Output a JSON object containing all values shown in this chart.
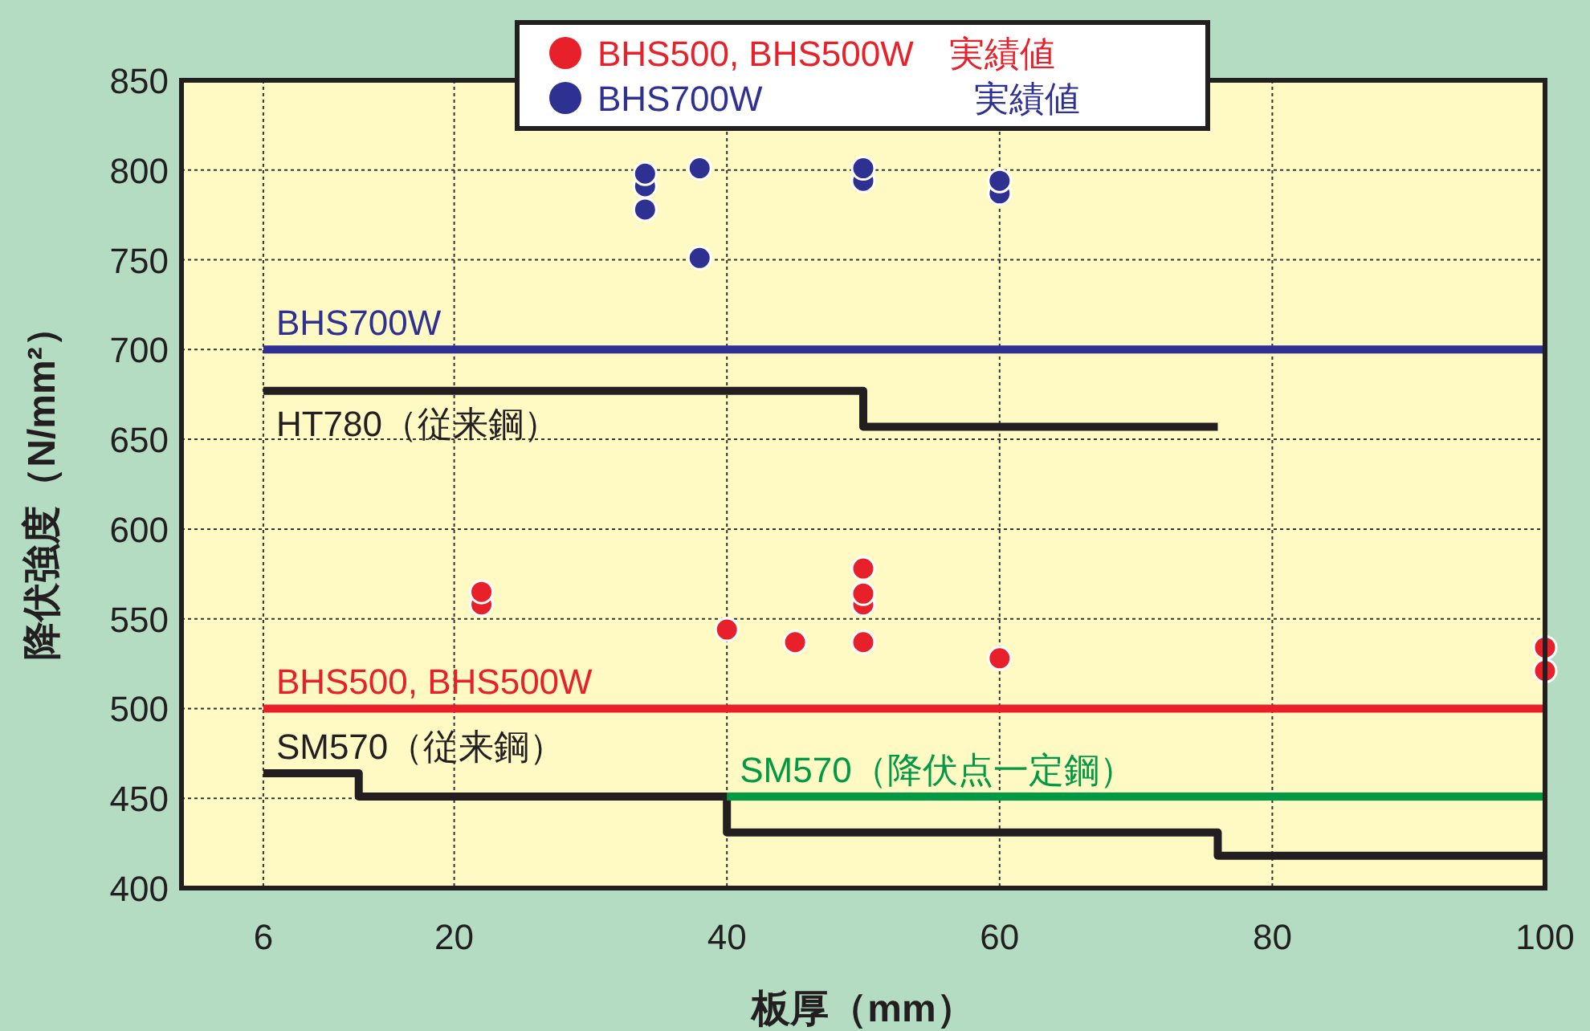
{
  "chart_data": {
    "type": "scatter",
    "xlabel": "板厚（mm）",
    "ylabel": "降伏強度（N/mm²）",
    "xlim": [
      0,
      100
    ],
    "ylim": [
      400,
      850
    ],
    "xticks": [
      6,
      20,
      40,
      60,
      80,
      100
    ],
    "yticks": [
      400,
      450,
      500,
      550,
      600,
      650,
      700,
      750,
      800,
      850
    ],
    "grid": true,
    "legend": "top",
    "marker": "circle",
    "series": [
      {
        "name": "BHS500, BHS500W　実績値",
        "color": "#e8202a",
        "x": [
          22,
          22,
          40,
          45,
          50,
          50,
          50,
          50,
          60,
          100,
          100
        ],
        "values": [
          565,
          558,
          544,
          537,
          578,
          564,
          558,
          537,
          528,
          534,
          521
        ]
      },
      {
        "name": "BHS700W　　　　　　実績値",
        "color": "#2e3192",
        "x": [
          34,
          34,
          34,
          38,
          38,
          50,
          50,
          60,
          60
        ],
        "values": [
          798,
          791,
          778,
          801,
          751,
          801,
          794,
          794,
          787
        ]
      },
      {
        "type": "line",
        "marker": "none",
        "name": "BHS700W",
        "color": "#2e3192",
        "x": [
          6,
          100
        ],
        "values": [
          700,
          700
        ]
      },
      {
        "type": "line",
        "marker": "none",
        "name": "HT780（従来鋼）",
        "color": "#231f20",
        "x": [
          6,
          50,
          50,
          76
        ],
        "values": [
          677,
          677,
          657,
          657
        ]
      },
      {
        "type": "line",
        "marker": "none",
        "name": "BHS500, BHS500W",
        "color": "#e8202a",
        "x": [
          6,
          100
        ],
        "values": [
          500,
          500
        ]
      },
      {
        "type": "line",
        "marker": "none",
        "name": "SM570（従来鋼）",
        "color": "#231f20",
        "x": [
          6,
          13,
          13,
          40,
          40,
          76,
          76,
          100
        ],
        "values": [
          464,
          464,
          451,
          451,
          431,
          431,
          418,
          418
        ]
      },
      {
        "type": "line",
        "marker": "none",
        "name": "SM570（降伏点一定鋼）",
        "color": "#009a44",
        "x": [
          40,
          100
        ],
        "values": [
          451,
          451
        ]
      }
    ]
  }
}
